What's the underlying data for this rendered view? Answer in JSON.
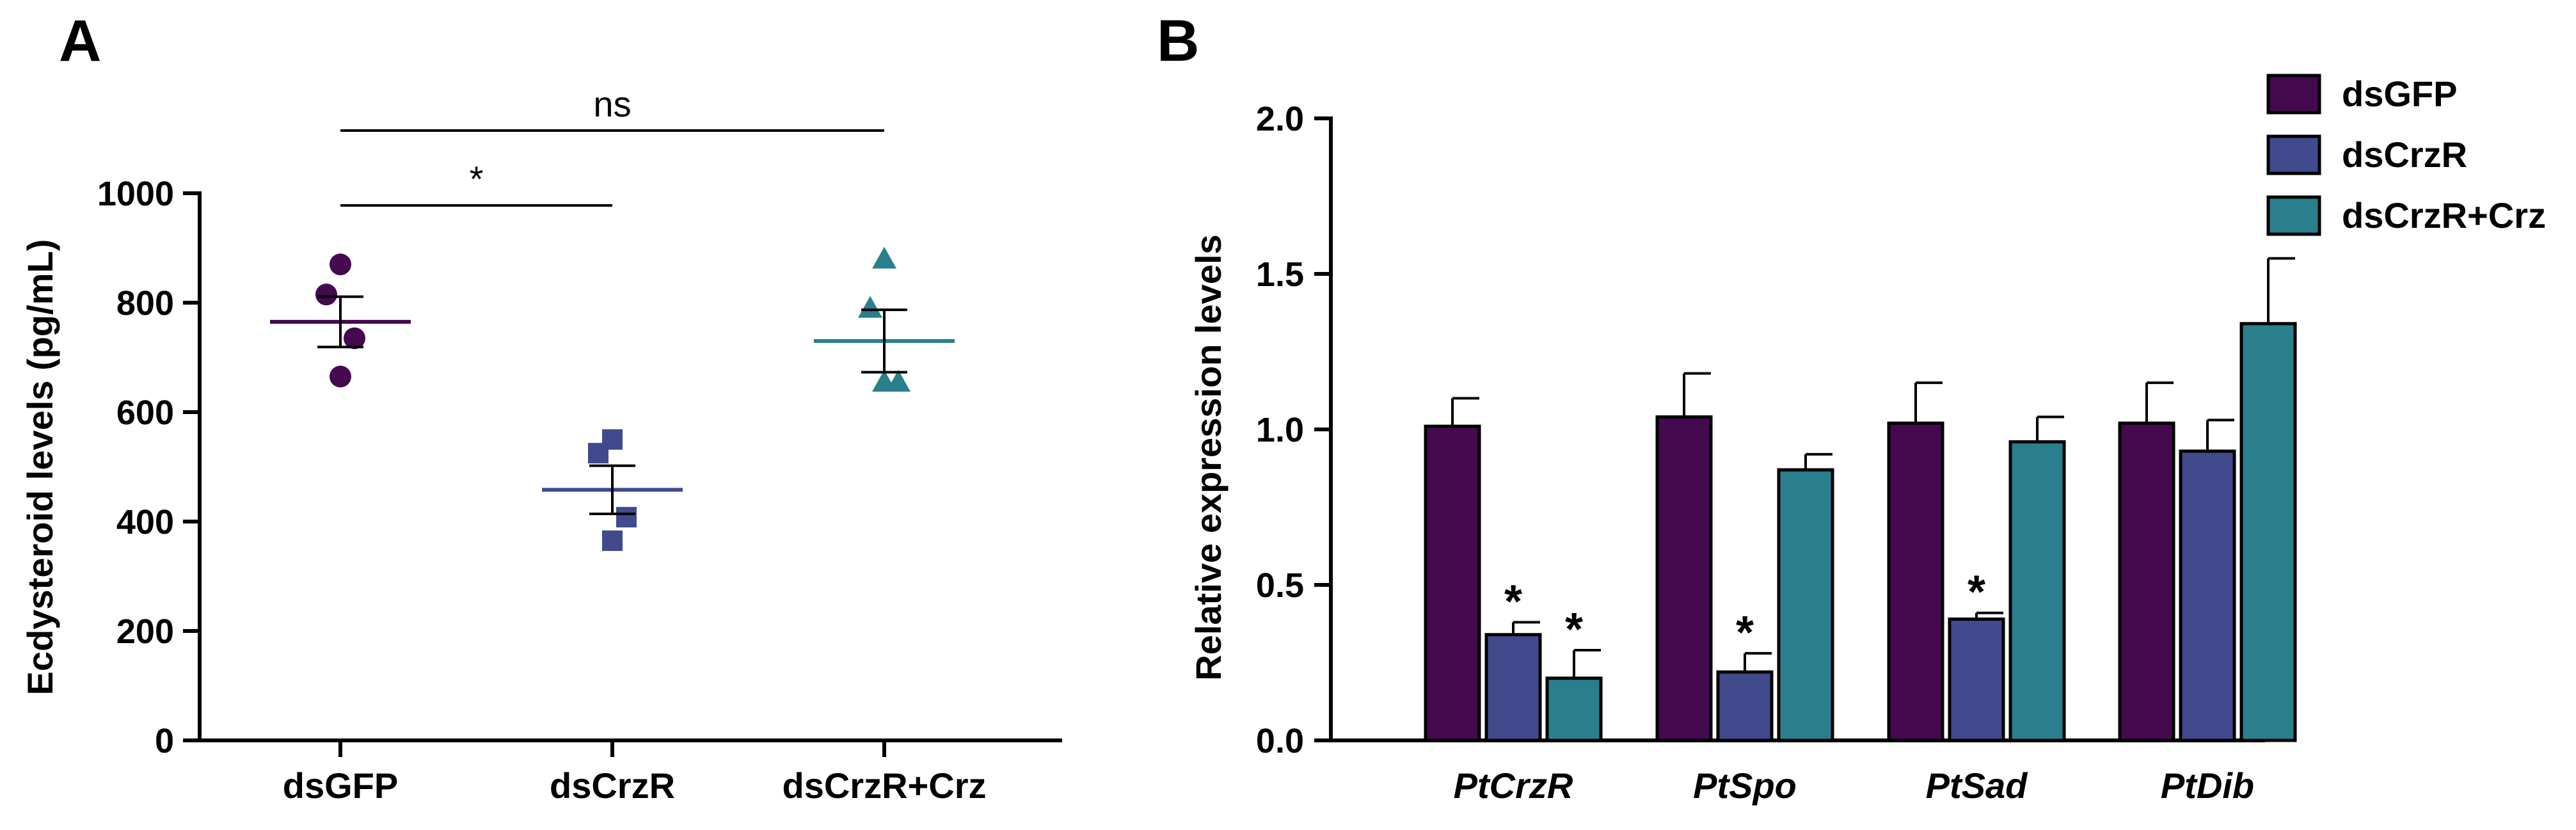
{
  "panels": {
    "a_letter": "A",
    "b_letter": "B"
  },
  "colors": {
    "dsGFP": "#44094f",
    "dsCrzR": "#414a8d",
    "dsCrzR_Crz": "#2a7f8d",
    "axis": "#000000"
  },
  "chart_data": [
    {
      "panel": "A",
      "type": "scatter",
      "title": "",
      "xlabel": "",
      "ylabel": "Ecdysteroid levels (pg/mL)",
      "ylim": [
        0,
        1000
      ],
      "yticks": [
        "0",
        "200",
        "400",
        "600",
        "800",
        "1000"
      ],
      "categories": [
        "dsGFP",
        "dsCrzR",
        "dsCrzR+Crz"
      ],
      "series": [
        {
          "name": "dsGFP",
          "marker": "circle",
          "points": [
            870,
            815,
            735,
            665
          ],
          "mean": 765,
          "sem": 46
        },
        {
          "name": "dsCrzR",
          "marker": "square",
          "points": [
            550,
            525,
            408,
            365
          ],
          "mean": 458,
          "sem": 44
        },
        {
          "name": "dsCrzR+Crz",
          "marker": "triangle",
          "points": [
            880,
            790,
            655,
            655
          ],
          "mean": 730,
          "sem": 57
        }
      ],
      "comparisons": [
        {
          "from": "dsGFP",
          "to": "dsCrzR+Crz",
          "label": "ns"
        },
        {
          "from": "dsGFP",
          "to": "dsCrzR",
          "label": "*"
        }
      ]
    },
    {
      "panel": "B",
      "type": "bar",
      "title": "",
      "xlabel": "",
      "ylabel": "Relative expression levels",
      "ylim": [
        0,
        2.0
      ],
      "yticks": [
        "0.0",
        "0.5",
        "1.0",
        "1.5",
        "2.0"
      ],
      "categories": [
        "PtCrzR",
        "PtSpo",
        "PtSad",
        "PtDib"
      ],
      "series": [
        {
          "name": "dsGFP",
          "values": [
            1.01,
            1.04,
            1.02,
            1.02
          ],
          "errors": [
            0.09,
            0.14,
            0.13,
            0.13
          ],
          "significant": [
            false,
            false,
            false,
            false
          ]
        },
        {
          "name": "dsCrzR",
          "values": [
            0.34,
            0.22,
            0.39,
            0.93
          ],
          "errors": [
            0.04,
            0.06,
            0.02,
            0.1
          ],
          "significant": [
            true,
            true,
            true,
            false
          ]
        },
        {
          "name": "dsCrzR+Crz",
          "values": [
            0.2,
            0.87,
            0.96,
            1.34
          ],
          "errors": [
            0.09,
            0.05,
            0.08,
            0.21
          ],
          "significant": [
            true,
            false,
            false,
            false
          ]
        }
      ],
      "significance_label": "*",
      "legend": [
        "dsGFP",
        "dsCrzR",
        "dsCrzR+Crz"
      ],
      "legend_position": "top-right"
    }
  ]
}
